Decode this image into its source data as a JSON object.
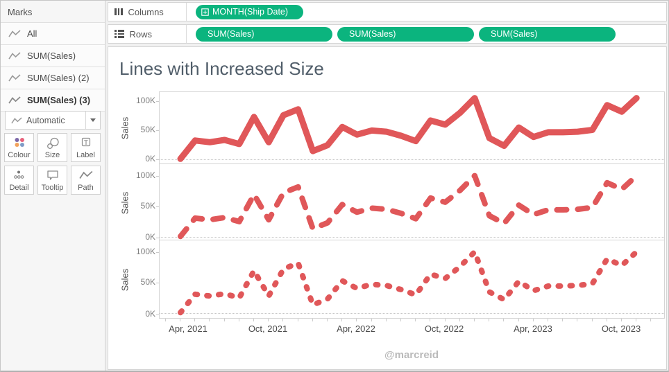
{
  "marks_panel": {
    "title": "Marks",
    "items": [
      {
        "label": "All",
        "selected": false
      },
      {
        "label": "SUM(Sales)",
        "selected": false
      },
      {
        "label": "SUM(Sales) (2)",
        "selected": false
      },
      {
        "label": "SUM(Sales) (3)",
        "selected": true
      }
    ],
    "mark_type_selector": "Automatic",
    "buttons": [
      "Colour",
      "Size",
      "Label",
      "Detail",
      "Tooltip",
      "Path"
    ]
  },
  "shelves": {
    "columns_label": "Columns",
    "rows_label": "Rows",
    "columns_pills": [
      {
        "label": "MONTH(Ship Date)",
        "icon": "plus-box-icon"
      }
    ],
    "rows_pills": [
      "SUM(Sales)",
      "SUM(Sales)",
      "SUM(Sales)"
    ]
  },
  "chart": {
    "title": "Lines with Increased Size",
    "watermark": "@marcreid",
    "y_axis_label": "Sales"
  },
  "chart_data": {
    "type": "line",
    "title": "Lines with Increased Size",
    "ylabel": "Sales",
    "ylim_k": [
      0,
      110
    ],
    "y_tick_labels": [
      "100K",
      "50K",
      "0K"
    ],
    "x_tick_labels": [
      "Apr, 2021",
      "Oct, 2021",
      "Apr, 2022",
      "Oct, 2022",
      "Apr, 2023",
      "Oct, 2023"
    ],
    "grid": "zero-line-dotted-only",
    "legend": "none",
    "x": [
      "Apr 2021",
      "May 2021",
      "Jun 2021",
      "Jul 2021",
      "Aug 2021",
      "Sep 2021",
      "Oct 2021",
      "Nov 2021",
      "Dec 2021",
      "Jan 2022",
      "Feb 2022",
      "Mar 2022",
      "Apr 2022",
      "May 2022",
      "Jun 2022",
      "Jul 2022",
      "Aug 2022",
      "Sep 2022",
      "Oct 2022",
      "Nov 2022",
      "Dec 2022",
      "Jan 2023",
      "Feb 2023",
      "Mar 2023",
      "Apr 2023",
      "May 2023",
      "Jun 2023",
      "Jul 2023",
      "Aug 2023",
      "Sep 2023",
      "Oct 2023",
      "Nov 2023"
    ],
    "series": [
      {
        "name": "SUM(Sales)",
        "panel": 1,
        "style": "solid",
        "values_k": [
          0.8,
          32,
          29,
          33,
          26,
          72,
          29,
          75,
          85,
          14,
          24,
          55,
          42,
          49,
          47,
          40,
          31,
          66,
          59,
          79,
          104,
          36,
          23,
          54,
          38,
          46,
          46,
          47,
          50,
          92,
          81,
          104
        ]
      },
      {
        "name": "SUM(Sales) (2)",
        "panel": 2,
        "style": "dashed",
        "values_k": [
          0.8,
          32,
          29,
          33,
          26,
          72,
          29,
          75,
          85,
          14,
          24,
          55,
          42,
          49,
          47,
          40,
          31,
          66,
          59,
          79,
          104,
          36,
          23,
          54,
          38,
          46,
          46,
          47,
          50,
          92,
          81,
          104
        ]
      },
      {
        "name": "SUM(Sales) (3)",
        "panel": 3,
        "style": "dotted",
        "values_k": [
          0.8,
          32,
          29,
          33,
          26,
          72,
          29,
          75,
          85,
          14,
          24,
          55,
          42,
          49,
          47,
          40,
          31,
          66,
          59,
          79,
          104,
          36,
          23,
          54,
          38,
          46,
          46,
          47,
          50,
          92,
          81,
          104
        ]
      }
    ]
  },
  "colors": {
    "line_red": "#e05759",
    "pill_green": "#0bb47e",
    "title_gray": "#515e6a"
  }
}
